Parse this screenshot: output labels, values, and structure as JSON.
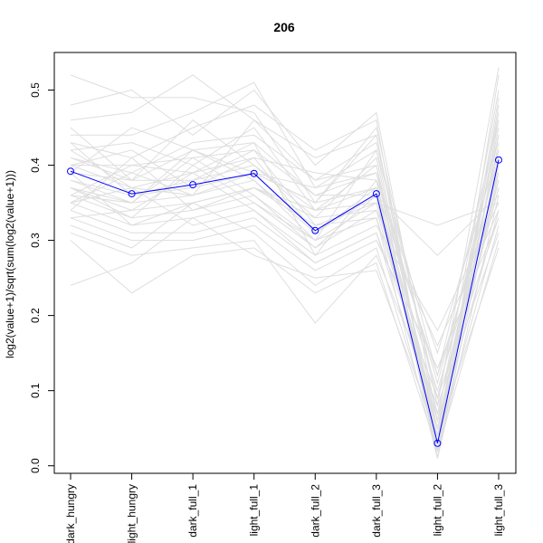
{
  "chart_data": {
    "type": "line",
    "title": "206",
    "xlabel": "",
    "ylabel": "log2(value+1)/sqrt(sum(log2(value+1)))",
    "categories": [
      "dark_hungry",
      "light_hungry",
      "dark_full_1",
      "light_full_1",
      "dark_full_2",
      "dark_full_3",
      "light_full_2",
      "light_full_3"
    ],
    "ylim": [
      -0.01,
      0.55
    ],
    "y_ticks": [
      0.0,
      0.1,
      0.2,
      0.3,
      0.4,
      0.5
    ],
    "y_tick_labels": [
      "0.0",
      "0.1",
      "0.2",
      "0.3",
      "0.4",
      "0.5"
    ],
    "grid": false,
    "legend": "none",
    "highlight": {
      "values": [
        0.392,
        0.362,
        0.374,
        0.389,
        0.313,
        0.362,
        0.03,
        0.407
      ],
      "color": "#0000ff"
    },
    "background_series": [
      [
        0.52,
        0.49,
        0.49,
        0.47,
        0.35,
        0.45,
        0.08,
        0.53
      ],
      [
        0.48,
        0.5,
        0.44,
        0.5,
        0.4,
        0.47,
        0.06,
        0.5
      ],
      [
        0.46,
        0.47,
        0.52,
        0.46,
        0.41,
        0.44,
        0.02,
        0.49
      ],
      [
        0.44,
        0.44,
        0.47,
        0.51,
        0.37,
        0.42,
        0.12,
        0.46
      ],
      [
        0.43,
        0.41,
        0.45,
        0.48,
        0.42,
        0.46,
        0.01,
        0.52
      ],
      [
        0.42,
        0.43,
        0.4,
        0.45,
        0.34,
        0.4,
        0.05,
        0.45
      ],
      [
        0.41,
        0.39,
        0.43,
        0.44,
        0.38,
        0.43,
        0.09,
        0.44
      ],
      [
        0.4,
        0.4,
        0.41,
        0.42,
        0.36,
        0.39,
        0.03,
        0.43
      ],
      [
        0.4,
        0.37,
        0.39,
        0.41,
        0.39,
        0.38,
        0.15,
        0.42
      ],
      [
        0.39,
        0.38,
        0.38,
        0.4,
        0.33,
        0.41,
        0.04,
        0.41
      ],
      [
        0.38,
        0.36,
        0.37,
        0.39,
        0.35,
        0.37,
        0.07,
        0.4
      ],
      [
        0.37,
        0.35,
        0.36,
        0.38,
        0.31,
        0.36,
        0.02,
        0.39
      ],
      [
        0.37,
        0.34,
        0.35,
        0.37,
        0.32,
        0.35,
        0.1,
        0.38
      ],
      [
        0.36,
        0.33,
        0.34,
        0.36,
        0.29,
        0.34,
        0.06,
        0.37
      ],
      [
        0.35,
        0.32,
        0.33,
        0.35,
        0.3,
        0.33,
        0.01,
        0.36
      ],
      [
        0.35,
        0.37,
        0.32,
        0.34,
        0.28,
        0.32,
        0.18,
        0.35
      ],
      [
        0.34,
        0.31,
        0.31,
        0.33,
        0.27,
        0.31,
        0.05,
        0.34
      ],
      [
        0.33,
        0.3,
        0.3,
        0.32,
        0.26,
        0.3,
        0.13,
        0.33
      ],
      [
        0.32,
        0.29,
        0.35,
        0.31,
        0.24,
        0.29,
        0.03,
        0.32
      ],
      [
        0.31,
        0.28,
        0.29,
        0.3,
        0.19,
        0.28,
        0.08,
        0.31
      ],
      [
        0.3,
        0.23,
        0.28,
        0.29,
        0.23,
        0.27,
        0.02,
        0.3
      ],
      [
        0.24,
        0.27,
        0.33,
        0.28,
        0.25,
        0.26,
        0.04,
        0.29
      ],
      [
        0.39,
        0.45,
        0.42,
        0.43,
        0.36,
        0.36,
        0.28,
        0.36
      ],
      [
        0.41,
        0.38,
        0.46,
        0.4,
        0.34,
        0.35,
        0.32,
        0.35
      ],
      [
        0.36,
        0.4,
        0.39,
        0.43,
        0.28,
        0.38,
        0.01,
        0.48
      ],
      [
        0.38,
        0.35,
        0.41,
        0.36,
        0.3,
        0.42,
        0.04,
        0.47
      ],
      [
        0.43,
        0.36,
        0.38,
        0.42,
        0.32,
        0.33,
        0.07,
        0.42
      ],
      [
        0.35,
        0.39,
        0.36,
        0.39,
        0.37,
        0.39,
        0.11,
        0.41
      ],
      [
        0.4,
        0.42,
        0.37,
        0.41,
        0.31,
        0.37,
        0.02,
        0.44
      ],
      [
        0.37,
        0.33,
        0.4,
        0.35,
        0.29,
        0.36,
        0.06,
        0.37
      ],
      [
        0.34,
        0.41,
        0.34,
        0.37,
        0.33,
        0.34,
        0.16,
        0.34
      ],
      [
        0.45,
        0.38,
        0.42,
        0.39,
        0.35,
        0.44,
        0.03,
        0.46
      ],
      [
        0.33,
        0.34,
        0.39,
        0.34,
        0.27,
        0.31,
        0.09,
        0.33
      ],
      [
        0.42,
        0.37,
        0.36,
        0.46,
        0.38,
        0.4,
        0.01,
        0.4
      ],
      [
        0.36,
        0.35,
        0.42,
        0.38,
        0.3,
        0.35,
        0.05,
        0.38
      ],
      [
        0.39,
        0.32,
        0.35,
        0.37,
        0.34,
        0.37,
        0.12,
        0.39
      ]
    ]
  }
}
